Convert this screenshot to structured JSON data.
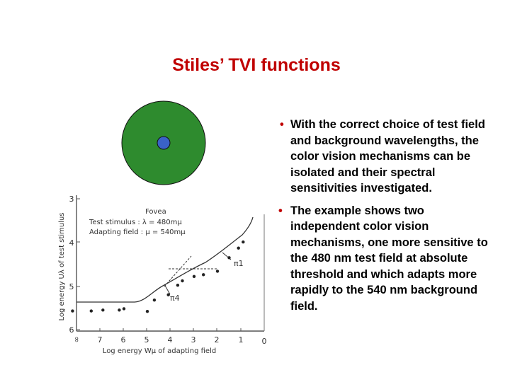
{
  "slide": {
    "title": "Stiles’ TVI functions",
    "bullets": [
      "With the correct choice of test field and background wavelengths, the color vision mechanisms can be isolated and their spectral sensitivities investigated.",
      "The example shows two independent color vision mechanisms, one more sensitive to the 480 nm test field at absolute threshold and which adapts more rapidly to the 540 nm background field."
    ],
    "bullet_symbol": "•"
  },
  "stimulus": {
    "background_color": "#2e8b2e",
    "test_color": "#3a62c8"
  },
  "figure": {
    "legend_fovea": "Fovea",
    "legend_test": "Test stimulus : λ = 480mμ",
    "legend_adapting": "Adapting field : μ = 540mμ",
    "xlabel": "Log energy  Wμ  of adapting field",
    "ylabel": "Log energy Uλ of test stimulus",
    "x_ticks": [
      "∞",
      "7",
      "6",
      "5",
      "4",
      "3",
      "2",
      "1",
      "0"
    ],
    "y_ticks": [
      "3",
      "4",
      "5",
      "6"
    ],
    "pi1_label": "π1",
    "pi4_label": "π4"
  },
  "chart_data": {
    "type": "scatter",
    "xlabel": "Log energy Wμ of adapting field",
    "ylabel": "Log energy Uλ of test stimulus",
    "x_ticks": [
      "∞",
      "7",
      "6",
      "5",
      "4",
      "3",
      "2",
      "1",
      "0"
    ],
    "y_ticks": [
      "3",
      "4",
      "5",
      "6"
    ],
    "x_axis_reversed": true,
    "y_axis_reversed": true,
    "series": [
      {
        "name": "Test stimulus : λ = 480mμ, Adapting field : μ = 540mμ",
        "points": [
          {
            "x": -8.2,
            "y": 5.57
          },
          {
            "x": -7.4,
            "y": 5.57
          },
          {
            "x": -6.9,
            "y": 5.55
          },
          {
            "x": -6.0,
            "y": 5.52
          },
          {
            "x": -6.2,
            "y": 5.55
          },
          {
            "x": -5.0,
            "y": 5.58
          },
          {
            "x": -4.7,
            "y": 5.32
          },
          {
            "x": -4.1,
            "y": 5.2
          },
          {
            "x": -3.7,
            "y": 4.98
          },
          {
            "x": -3.5,
            "y": 4.88
          },
          {
            "x": -3.0,
            "y": 4.78
          },
          {
            "x": -2.6,
            "y": 4.74
          },
          {
            "x": -2.0,
            "y": 4.66
          },
          {
            "x": -1.5,
            "y": 4.35
          },
          {
            "x": -1.1,
            "y": 4.13
          },
          {
            "x": -0.9,
            "y": 3.99
          }
        ]
      }
    ],
    "curves": [
      "π1",
      "π4"
    ]
  }
}
